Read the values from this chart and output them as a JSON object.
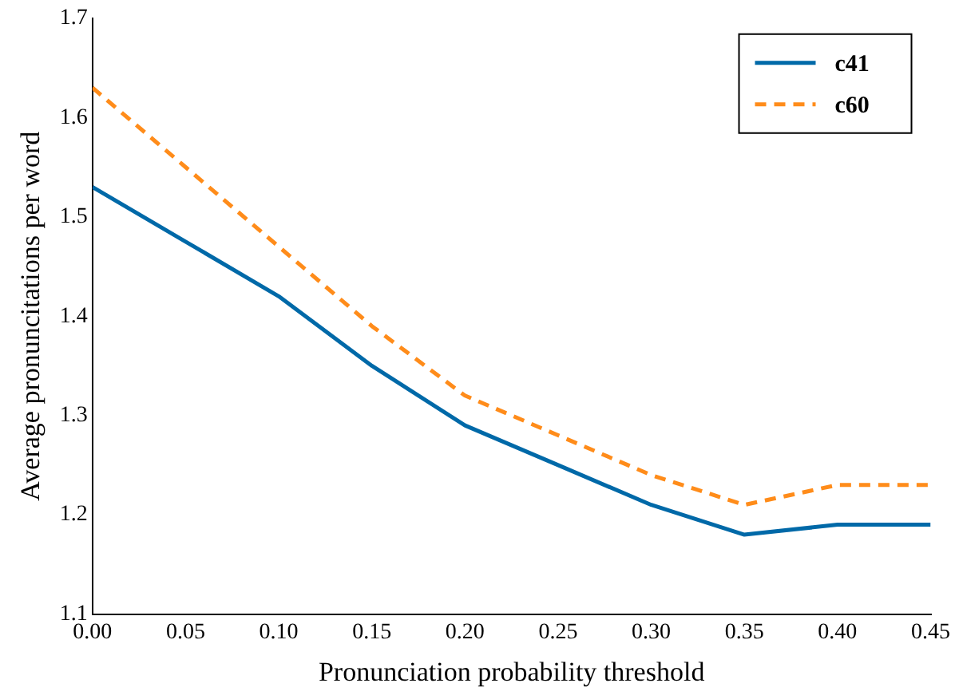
{
  "chart_data": {
    "type": "line",
    "xlabel": "Pronunciation probability threshold",
    "ylabel": "Average pronuncitations per word",
    "x": [
      0,
      0.05,
      0.1,
      0.15,
      0.2,
      0.25,
      0.3,
      0.35,
      0.4,
      0.45
    ],
    "series": [
      {
        "name": "c41",
        "color": "#0069a8",
        "line_style": "solid",
        "values": [
          1.53,
          1.475,
          1.42,
          1.35,
          1.29,
          1.25,
          1.21,
          1.18,
          1.19,
          1.19
        ]
      },
      {
        "name": "c60",
        "color": "#ff8c1a",
        "line_style": "dashed",
        "values": [
          1.63,
          1.55,
          1.47,
          1.39,
          1.32,
          1.28,
          1.24,
          1.21,
          1.23,
          1.23
        ]
      }
    ],
    "xlim": [
      0,
      0.45
    ],
    "xticks": [
      {
        "value": 0,
        "label": "0.00"
      },
      {
        "value": 0.05,
        "label": "0.05"
      },
      {
        "value": 0.1,
        "label": "0.10"
      },
      {
        "value": 0.15,
        "label": "0.15"
      },
      {
        "value": 0.2,
        "label": "0.20"
      },
      {
        "value": 0.25,
        "label": "0.25"
      },
      {
        "value": 0.3,
        "label": "0.30"
      },
      {
        "value": 0.35,
        "label": "0.35"
      },
      {
        "value": 0.4,
        "label": "0.40"
      },
      {
        "value": 0.45,
        "label": "0.45"
      }
    ],
    "ylim": [
      1.1,
      1.7
    ],
    "yticks": [
      1.1,
      1.2,
      1.3,
      1.4,
      1.5,
      1.6,
      1.7
    ],
    "legend": "top right",
    "grid": false,
    "marker": "none"
  }
}
